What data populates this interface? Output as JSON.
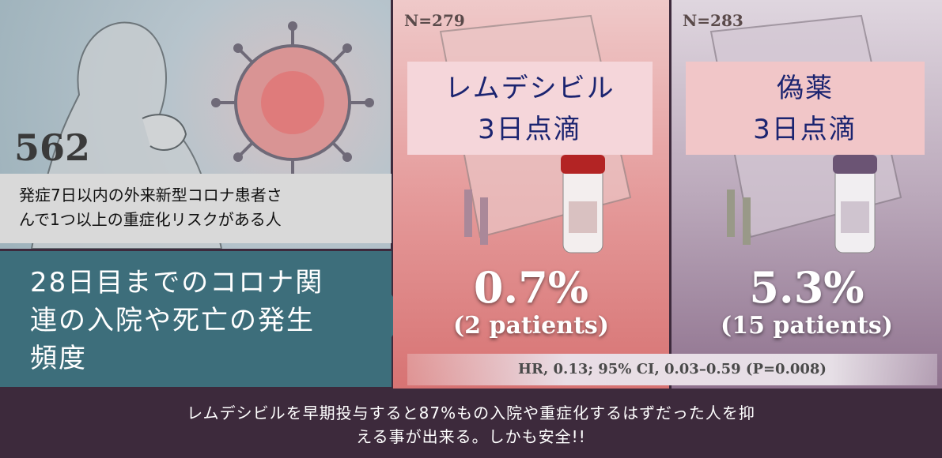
{
  "left": {
    "count": "562",
    "caption": [
      "発症7日以内の外来新型コロナ患者さ",
      "んで1つ以上の重症化リスクがある人"
    ],
    "outcome": [
      "28日目までのコロナ関",
      "連の入院や死亡の発生",
      "頻度"
    ]
  },
  "groups": [
    {
      "n": "N=279",
      "label": [
        "レムデシビル",
        "3日点滴"
      ],
      "rate": "0.7%",
      "patients": "(2 patients)"
    },
    {
      "n": "N=283",
      "label": [
        "偽薬",
        "3日点滴"
      ],
      "rate": "5.3%",
      "patients": "(15 patients)"
    }
  ],
  "stats": "HR, 0.13; 95% CI, 0.03–0.59 (P=0.008)",
  "footer": [
    "レムデシビルを早期投与すると87%もの入院や重症化するはずだった人を抑",
    "える事が出来る。しかも安全!!"
  ]
}
